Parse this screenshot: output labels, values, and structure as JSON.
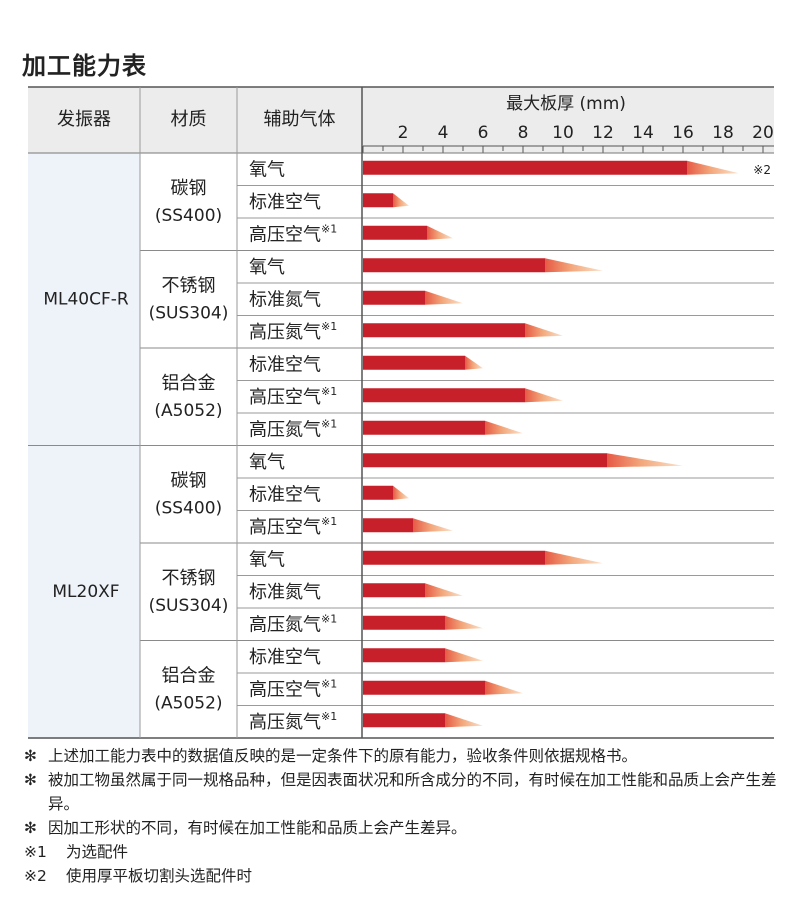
{
  "title": "加工能力表",
  "headers": {
    "oscillator": "发振器",
    "material": "材质",
    "gas": "辅助气体",
    "thickness": "最大板厚 (mm)"
  },
  "chart_data": {
    "type": "bar",
    "orientation": "horizontal",
    "title": "最大板厚 (mm)",
    "xlim": [
      0,
      20
    ],
    "xticks": [
      2,
      4,
      6,
      8,
      10,
      12,
      14,
      16,
      18,
      20
    ],
    "xtick_labels": [
      "2",
      "4",
      "6",
      "8",
      "10",
      "12",
      "14",
      "16",
      "18",
      "20"
    ],
    "colors": {
      "bar": "#c8202a",
      "bar_dark": "#b81620",
      "taper_start": "#e65a45",
      "taper_mid": "#f3a77b",
      "taper_end": "#fbe3cc"
    },
    "series_note": "solid = stable processing thickness, taper = reachable maximum",
    "machines": [
      {
        "name": "ML40CF-R",
        "materials": [
          {
            "name": "碳钢",
            "code": "(SS400)",
            "rows": [
              {
                "gas": "氧气",
                "note": "",
                "solid": 16.2,
                "max": 18.8,
                "mark": "※2"
              },
              {
                "gas": "标准空气",
                "note": "",
                "solid": 1.5,
                "max": 2.3,
                "mark": ""
              },
              {
                "gas": "高压空气",
                "note": "※1",
                "solid": 3.2,
                "max": 4.5,
                "mark": ""
              }
            ]
          },
          {
            "name": "不锈钢",
            "code": "(SUS304)",
            "rows": [
              {
                "gas": "氧气",
                "note": "",
                "solid": 9.1,
                "max": 12.0,
                "mark": ""
              },
              {
                "gas": "标准氮气",
                "note": "",
                "solid": 3.1,
                "max": 5.0,
                "mark": ""
              },
              {
                "gas": "高压氮气",
                "note": "※1",
                "solid": 8.1,
                "max": 10.0,
                "mark": ""
              }
            ]
          },
          {
            "name": "铝合金",
            "code": "(A5052)",
            "rows": [
              {
                "gas": "标准空气",
                "note": "",
                "solid": 5.1,
                "max": 6.0,
                "mark": ""
              },
              {
                "gas": "高压空气",
                "note": "※1",
                "solid": 8.1,
                "max": 10.0,
                "mark": ""
              },
              {
                "gas": "高压氮气",
                "note": "※1",
                "solid": 6.1,
                "max": 8.0,
                "mark": ""
              }
            ]
          }
        ]
      },
      {
        "name": "ML20XF",
        "materials": [
          {
            "name": "碳钢",
            "code": "(SS400)",
            "rows": [
              {
                "gas": "氧气",
                "note": "",
                "solid": 12.2,
                "max": 16.0,
                "mark": ""
              },
              {
                "gas": "标准空气",
                "note": "",
                "solid": 1.5,
                "max": 2.3,
                "mark": ""
              },
              {
                "gas": "高压空气",
                "note": "※1",
                "solid": 2.5,
                "max": 4.5,
                "mark": ""
              }
            ]
          },
          {
            "name": "不锈钢",
            "code": "(SUS304)",
            "rows": [
              {
                "gas": "氧气",
                "note": "",
                "solid": 9.1,
                "max": 12.0,
                "mark": ""
              },
              {
                "gas": "标准氮气",
                "note": "",
                "solid": 3.1,
                "max": 5.0,
                "mark": ""
              },
              {
                "gas": "高压氮气",
                "note": "※1",
                "solid": 4.1,
                "max": 6.0,
                "mark": ""
              }
            ]
          },
          {
            "name": "铝合金",
            "code": "(A5052)",
            "rows": [
              {
                "gas": "标准空气",
                "note": "",
                "solid": 4.1,
                "max": 6.0,
                "mark": ""
              },
              {
                "gas": "高压空气",
                "note": "※1",
                "solid": 6.1,
                "max": 8.0,
                "mark": ""
              },
              {
                "gas": "高压氮气",
                "note": "※1",
                "solid": 4.1,
                "max": 6.0,
                "mark": ""
              }
            ]
          }
        ]
      }
    ]
  },
  "notes": [
    {
      "mark": "✻",
      "text": "上述加工能力表中的数据值反映的是一定条件下的原有能力，验收条件则依据规格书。"
    },
    {
      "mark": "✻",
      "text": "被加工物虽然属于同一规格品种，但是因表面状况和所含成分的不同，有时候在加工性能和品质上会产生差异。"
    },
    {
      "mark": "✻",
      "text": "因加工形状的不同，有时候在加工性能和品质上会产生差异。"
    },
    {
      "mark": "※1",
      "text": "为选配件"
    },
    {
      "mark": "※2",
      "text": "使用厚平板切割头选配件时"
    }
  ]
}
